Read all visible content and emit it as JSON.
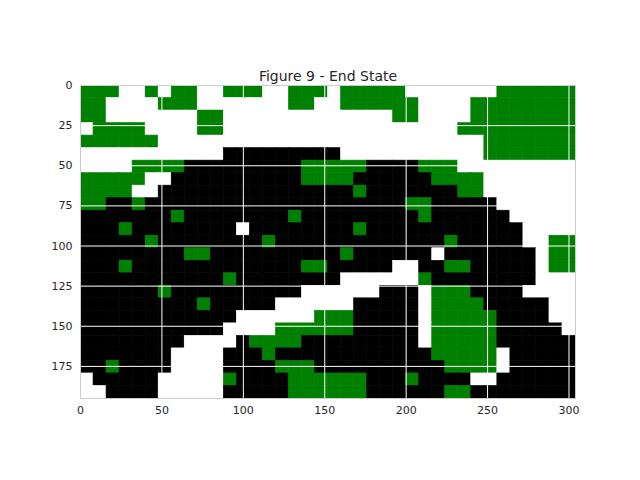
{
  "chart_data": {
    "type": "image",
    "title": "Figure 9 - End State",
    "xlim": [
      0,
      304
    ],
    "ylim": [
      195,
      0
    ],
    "xticks": [
      0,
      50,
      100,
      150,
      200,
      250,
      300
    ],
    "yticks": [
      0,
      25,
      50,
      75,
      100,
      125,
      150,
      175
    ],
    "grid": true,
    "colors": [
      "white",
      "green",
      "black"
    ],
    "cells": [
      [
        1,
        1,
        1,
        0,
        0,
        1,
        0,
        1,
        1,
        0,
        0,
        1,
        1,
        1,
        0,
        0,
        1,
        1,
        1,
        0,
        1,
        1,
        1,
        1,
        1,
        0,
        0,
        0,
        0,
        0,
        0,
        0,
        1,
        1,
        1,
        1,
        1,
        1
      ],
      [
        1,
        1,
        0,
        0,
        0,
        0,
        1,
        1,
        1,
        0,
        0,
        0,
        0,
        0,
        0,
        0,
        1,
        1,
        0,
        0,
        1,
        1,
        1,
        1,
        1,
        1,
        0,
        0,
        0,
        0,
        1,
        1,
        1,
        1,
        1,
        1,
        1,
        1
      ],
      [
        1,
        1,
        0,
        0,
        0,
        0,
        0,
        0,
        0,
        1,
        1,
        0,
        0,
        0,
        0,
        0,
        0,
        0,
        0,
        0,
        0,
        0,
        0,
        0,
        1,
        1,
        0,
        0,
        0,
        0,
        1,
        1,
        1,
        1,
        1,
        1,
        1,
        1
      ],
      [
        0,
        1,
        1,
        1,
        1,
        0,
        0,
        0,
        0,
        1,
        1,
        0,
        0,
        0,
        0,
        0,
        0,
        0,
        0,
        0,
        0,
        0,
        0,
        0,
        0,
        0,
        0,
        0,
        0,
        1,
        1,
        1,
        1,
        1,
        1,
        1,
        1,
        1
      ],
      [
        1,
        1,
        1,
        1,
        1,
        1,
        0,
        0,
        0,
        0,
        0,
        0,
        0,
        0,
        0,
        0,
        0,
        0,
        0,
        0,
        0,
        0,
        0,
        0,
        0,
        0,
        0,
        0,
        0,
        0,
        0,
        1,
        1,
        1,
        1,
        1,
        1,
        1
      ],
      [
        0,
        0,
        0,
        0,
        0,
        0,
        0,
        0,
        0,
        0,
        0,
        2,
        2,
        2,
        2,
        2,
        2,
        2,
        2,
        2,
        0,
        0,
        0,
        0,
        0,
        0,
        0,
        0,
        0,
        0,
        0,
        1,
        1,
        1,
        1,
        1,
        1,
        1
      ],
      [
        0,
        0,
        0,
        0,
        1,
        1,
        1,
        1,
        2,
        2,
        2,
        2,
        2,
        2,
        2,
        2,
        2,
        1,
        1,
        1,
        1,
        1,
        2,
        2,
        2,
        2,
        1,
        1,
        1,
        0,
        0,
        0,
        0,
        0,
        0,
        0,
        0,
        0
      ],
      [
        1,
        1,
        1,
        1,
        1,
        0,
        0,
        2,
        2,
        2,
        2,
        2,
        2,
        2,
        2,
        2,
        2,
        1,
        1,
        1,
        1,
        2,
        2,
        2,
        2,
        2,
        2,
        1,
        1,
        1,
        1,
        0,
        0,
        0,
        0,
        0,
        0,
        0
      ],
      [
        1,
        1,
        1,
        1,
        0,
        0,
        2,
        2,
        2,
        2,
        2,
        2,
        2,
        2,
        2,
        2,
        2,
        2,
        2,
        2,
        2,
        1,
        2,
        2,
        2,
        2,
        2,
        2,
        2,
        1,
        1,
        0,
        0,
        0,
        0,
        0,
        0,
        0
      ],
      [
        1,
        1,
        2,
        2,
        1,
        2,
        2,
        2,
        2,
        2,
        2,
        2,
        2,
        2,
        2,
        2,
        2,
        2,
        2,
        2,
        2,
        2,
        2,
        2,
        2,
        1,
        1,
        2,
        2,
        2,
        2,
        2,
        0,
        0,
        0,
        0,
        0,
        0
      ],
      [
        2,
        2,
        2,
        2,
        2,
        2,
        2,
        1,
        2,
        2,
        2,
        2,
        2,
        2,
        2,
        2,
        1,
        2,
        2,
        2,
        2,
        2,
        2,
        2,
        2,
        2,
        1,
        2,
        2,
        2,
        2,
        2,
        2,
        0,
        0,
        0,
        0,
        0
      ],
      [
        2,
        2,
        2,
        1,
        2,
        2,
        2,
        2,
        2,
        2,
        2,
        2,
        0,
        2,
        2,
        2,
        2,
        2,
        2,
        2,
        2,
        1,
        2,
        2,
        2,
        2,
        2,
        2,
        2,
        2,
        2,
        2,
        2,
        2,
        0,
        0,
        0,
        0
      ],
      [
        2,
        2,
        2,
        2,
        2,
        1,
        2,
        2,
        2,
        2,
        2,
        2,
        2,
        2,
        1,
        2,
        2,
        2,
        2,
        2,
        2,
        2,
        2,
        2,
        2,
        2,
        2,
        2,
        1,
        2,
        2,
        2,
        2,
        2,
        0,
        0,
        1,
        1
      ],
      [
        2,
        2,
        2,
        2,
        2,
        2,
        2,
        2,
        1,
        1,
        2,
        2,
        2,
        2,
        2,
        2,
        2,
        2,
        2,
        2,
        1,
        2,
        2,
        2,
        2,
        2,
        2,
        0,
        2,
        2,
        2,
        2,
        2,
        2,
        2,
        0,
        1,
        1
      ],
      [
        2,
        2,
        2,
        1,
        2,
        2,
        2,
        2,
        2,
        2,
        2,
        2,
        2,
        2,
        2,
        2,
        2,
        1,
        1,
        2,
        2,
        2,
        2,
        2,
        0,
        0,
        2,
        2,
        1,
        1,
        2,
        2,
        2,
        2,
        2,
        0,
        1,
        1
      ],
      [
        2,
        2,
        2,
        2,
        2,
        2,
        2,
        2,
        2,
        2,
        2,
        1,
        2,
        2,
        2,
        2,
        2,
        2,
        2,
        2,
        0,
        0,
        0,
        0,
        0,
        0,
        1,
        2,
        2,
        2,
        2,
        2,
        2,
        2,
        2,
        0,
        0,
        0
      ],
      [
        2,
        2,
        2,
        2,
        2,
        2,
        1,
        2,
        2,
        2,
        2,
        2,
        2,
        2,
        2,
        2,
        2,
        0,
        0,
        0,
        0,
        0,
        0,
        2,
        2,
        2,
        0,
        1,
        1,
        1,
        2,
        2,
        2,
        2,
        0,
        0,
        0,
        0
      ],
      [
        2,
        2,
        2,
        2,
        2,
        2,
        2,
        2,
        2,
        1,
        2,
        2,
        2,
        2,
        2,
        0,
        0,
        0,
        0,
        0,
        0,
        2,
        2,
        2,
        2,
        2,
        0,
        1,
        1,
        1,
        1,
        2,
        2,
        2,
        2,
        2,
        0,
        0
      ],
      [
        2,
        2,
        2,
        2,
        2,
        2,
        2,
        2,
        2,
        2,
        2,
        2,
        0,
        0,
        0,
        0,
        0,
        0,
        1,
        1,
        1,
        2,
        2,
        2,
        2,
        2,
        0,
        1,
        1,
        1,
        1,
        1,
        2,
        2,
        2,
        2,
        0,
        0
      ],
      [
        2,
        2,
        2,
        2,
        2,
        2,
        2,
        2,
        2,
        2,
        2,
        0,
        0,
        0,
        0,
        1,
        1,
        1,
        1,
        1,
        1,
        2,
        2,
        2,
        2,
        2,
        0,
        1,
        1,
        1,
        1,
        1,
        2,
        2,
        2,
        2,
        2,
        0
      ],
      [
        2,
        2,
        2,
        2,
        2,
        2,
        2,
        2,
        0,
        0,
        0,
        0,
        2,
        1,
        1,
        1,
        1,
        2,
        2,
        2,
        2,
        2,
        2,
        2,
        2,
        2,
        0,
        1,
        1,
        1,
        1,
        1,
        2,
        2,
        2,
        2,
        2,
        2
      ],
      [
        2,
        2,
        2,
        2,
        2,
        2,
        2,
        0,
        0,
        0,
        0,
        2,
        2,
        2,
        1,
        2,
        2,
        2,
        2,
        2,
        2,
        2,
        2,
        2,
        2,
        2,
        2,
        1,
        1,
        1,
        1,
        1,
        0,
        2,
        2,
        2,
        2,
        2
      ],
      [
        2,
        2,
        1,
        2,
        2,
        2,
        2,
        0,
        0,
        0,
        0,
        2,
        2,
        2,
        2,
        1,
        1,
        1,
        2,
        2,
        2,
        2,
        2,
        2,
        2,
        2,
        2,
        2,
        1,
        1,
        1,
        1,
        0,
        2,
        2,
        2,
        2,
        2
      ],
      [
        0,
        2,
        2,
        2,
        2,
        2,
        0,
        0,
        0,
        0,
        0,
        1,
        2,
        2,
        2,
        2,
        1,
        1,
        1,
        1,
        1,
        1,
        2,
        2,
        2,
        1,
        2,
        2,
        2,
        2,
        0,
        0,
        2,
        2,
        2,
        2,
        2,
        2
      ],
      [
        0,
        0,
        2,
        2,
        2,
        2,
        0,
        0,
        0,
        0,
        0,
        2,
        2,
        2,
        2,
        2,
        1,
        1,
        1,
        1,
        1,
        1,
        2,
        2,
        2,
        2,
        2,
        2,
        1,
        1,
        2,
        2,
        2,
        2,
        2,
        2,
        2,
        2
      ]
    ]
  }
}
